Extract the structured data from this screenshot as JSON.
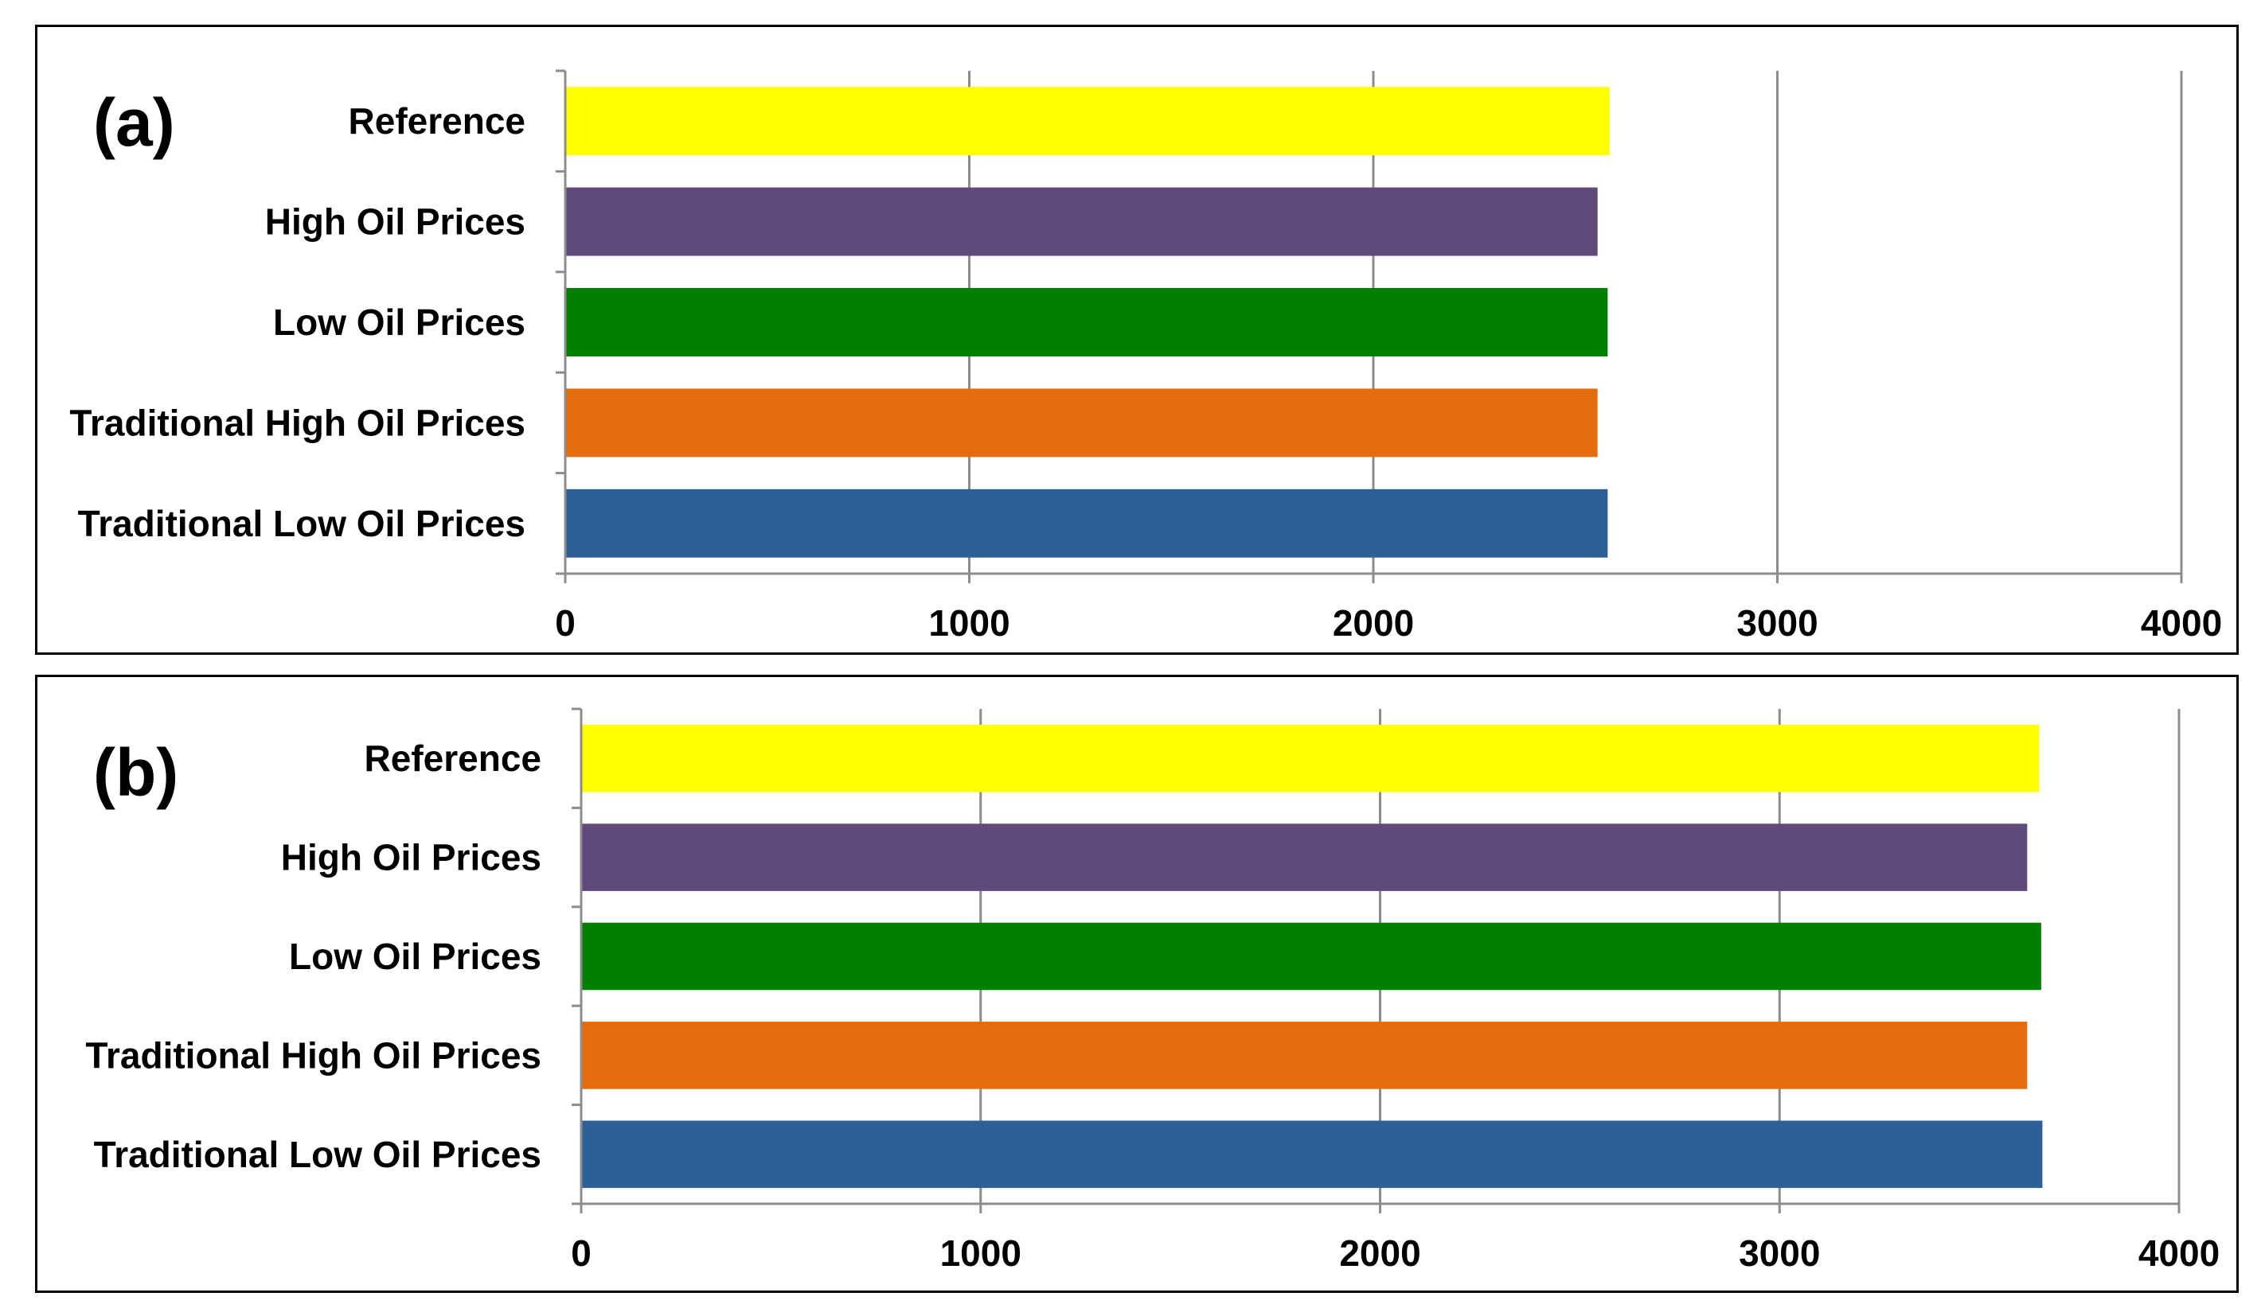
{
  "chart_data": [
    {
      "type": "bar",
      "orientation": "horizontal",
      "panel_label": "(a)",
      "categories": [
        "Reference",
        "High Oil Prices",
        "Low Oil Prices",
        "Traditional High Oil Prices",
        "Traditional Low Oil Prices"
      ],
      "values": [
        2585,
        2555,
        2580,
        2555,
        2580
      ],
      "colors": [
        "#ffff00",
        "#604a7b",
        "#008000",
        "#e46c0a",
        "#2e5f99"
      ],
      "xlim": [
        0,
        4000
      ],
      "xticks": [
        "0",
        "1000",
        "2000",
        "3000",
        "4000"
      ],
      "grid": true,
      "title": "",
      "xlabel": "",
      "ylabel": ""
    },
    {
      "type": "bar",
      "orientation": "horizontal",
      "panel_label": "(b)",
      "categories": [
        "Reference",
        "High Oil Prices",
        "Low Oil Prices",
        "Traditional High Oil Prices",
        "Traditional Low Oil Prices"
      ],
      "values": [
        3650,
        3620,
        3655,
        3620,
        3658
      ],
      "colors": [
        "#ffff00",
        "#604a7b",
        "#008000",
        "#e46c0a",
        "#2e5f99"
      ],
      "xlim": [
        0,
        4000
      ],
      "xticks": [
        "0",
        "1000",
        "2000",
        "3000",
        "4000"
      ],
      "grid": true,
      "title": "",
      "xlabel": "",
      "ylabel": ""
    }
  ]
}
